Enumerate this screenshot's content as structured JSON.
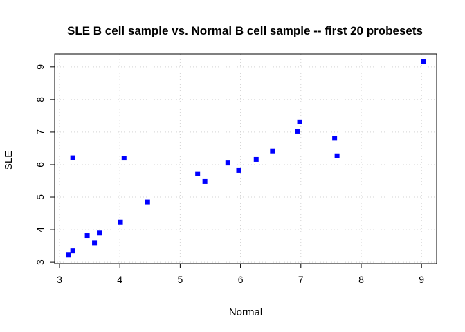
{
  "chart_data": {
    "type": "scatter",
    "title": "SLE B cell sample vs. Normal B cell sample -- first 20 probesets",
    "xlabel": "Normal",
    "ylabel": "SLE",
    "xlim": [
      2.92,
      9.25
    ],
    "ylim": [
      2.96,
      9.4
    ],
    "xticks": [
      3,
      4,
      5,
      6,
      7,
      8,
      9
    ],
    "yticks": [
      3,
      4,
      5,
      6,
      7,
      8,
      9
    ],
    "grid": true,
    "marker_color": "#0000ff",
    "points": [
      {
        "x": 3.15,
        "y": 3.22
      },
      {
        "x": 3.22,
        "y": 3.35
      },
      {
        "x": 3.22,
        "y": 6.21
      },
      {
        "x": 3.46,
        "y": 3.82
      },
      {
        "x": 3.58,
        "y": 3.6
      },
      {
        "x": 3.66,
        "y": 3.9
      },
      {
        "x": 4.01,
        "y": 4.23
      },
      {
        "x": 4.07,
        "y": 6.2
      },
      {
        "x": 4.46,
        "y": 4.85
      },
      {
        "x": 5.29,
        "y": 5.72
      },
      {
        "x": 5.41,
        "y": 5.48
      },
      {
        "x": 5.79,
        "y": 6.05
      },
      {
        "x": 5.97,
        "y": 5.82
      },
      {
        "x": 6.26,
        "y": 6.16
      },
      {
        "x": 6.53,
        "y": 6.42
      },
      {
        "x": 6.95,
        "y": 7.01
      },
      {
        "x": 6.98,
        "y": 7.31
      },
      {
        "x": 7.56,
        "y": 6.81
      },
      {
        "x": 7.6,
        "y": 6.27
      },
      {
        "x": 9.03,
        "y": 9.16
      }
    ]
  }
}
